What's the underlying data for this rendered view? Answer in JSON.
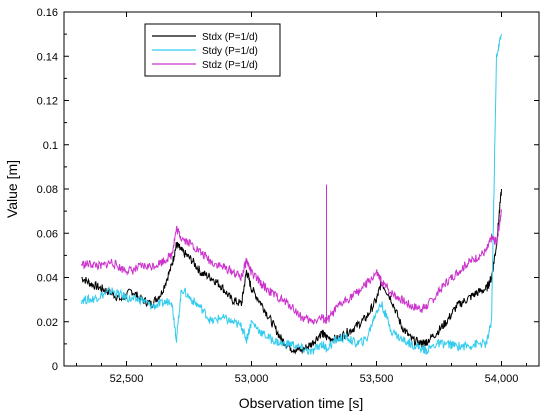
{
  "chart_data": {
    "type": "line",
    "xlabel": "Observation time [s]",
    "ylabel": "Value [m]",
    "xlim": [
      52250,
      54150
    ],
    "ylim": [
      0,
      0.16
    ],
    "x_ticks": [
      52500,
      53000,
      53500,
      54000
    ],
    "x_tick_labels": [
      "52,500",
      "53,000",
      "53,500",
      "54,000"
    ],
    "y_ticks": [
      0,
      0.02,
      0.04,
      0.06,
      0.08,
      0.1,
      0.12,
      0.14,
      0.16
    ],
    "y_tick_labels": [
      "0",
      "0.02",
      "0.04",
      "0.06",
      "0.08",
      "0.1",
      "0.12",
      "0.14",
      "0.16"
    ],
    "grid": false,
    "legend_position": "top-left",
    "series": [
      {
        "name": "Stdx (P=1/d)",
        "color": "#000000",
        "x": [
          52320,
          52360,
          52400,
          52440,
          52480,
          52520,
          52560,
          52600,
          52640,
          52680,
          52700,
          52720,
          52760,
          52800,
          52840,
          52880,
          52920,
          52960,
          52980,
          53000,
          53040,
          53080,
          53120,
          53160,
          53200,
          53240,
          53280,
          53300,
          53340,
          53380,
          53420,
          53460,
          53500,
          53520,
          53560,
          53600,
          53640,
          53680,
          53700,
          53740,
          53780,
          53820,
          53860,
          53900,
          53940,
          53960,
          53980,
          54000
        ],
        "y": [
          0.04,
          0.037,
          0.035,
          0.033,
          0.03,
          0.034,
          0.03,
          0.028,
          0.033,
          0.045,
          0.055,
          0.052,
          0.048,
          0.042,
          0.04,
          0.036,
          0.03,
          0.028,
          0.043,
          0.035,
          0.028,
          0.02,
          0.012,
          0.008,
          0.007,
          0.01,
          0.015,
          0.013,
          0.012,
          0.015,
          0.018,
          0.022,
          0.03,
          0.038,
          0.03,
          0.018,
          0.012,
          0.01,
          0.011,
          0.015,
          0.02,
          0.027,
          0.03,
          0.033,
          0.035,
          0.04,
          0.055,
          0.08
        ]
      },
      {
        "name": "Stdy (P=1/d)",
        "color": "#33ccee",
        "x": [
          52320,
          52360,
          52400,
          52440,
          52480,
          52520,
          52560,
          52600,
          52640,
          52680,
          52700,
          52720,
          52760,
          52800,
          52840,
          52880,
          52920,
          52960,
          52980,
          53000,
          53040,
          53080,
          53120,
          53160,
          53200,
          53240,
          53280,
          53300,
          53340,
          53380,
          53420,
          53460,
          53500,
          53520,
          53560,
          53600,
          53640,
          53680,
          53700,
          53740,
          53780,
          53820,
          53860,
          53900,
          53940,
          53960,
          53980,
          54000
        ],
        "y": [
          0.03,
          0.03,
          0.032,
          0.034,
          0.032,
          0.03,
          0.03,
          0.027,
          0.028,
          0.03,
          0.012,
          0.035,
          0.03,
          0.026,
          0.02,
          0.022,
          0.02,
          0.018,
          0.012,
          0.02,
          0.015,
          0.012,
          0.01,
          0.01,
          0.008,
          0.006,
          0.01,
          0.008,
          0.012,
          0.013,
          0.01,
          0.012,
          0.025,
          0.028,
          0.016,
          0.012,
          0.01,
          0.008,
          0.007,
          0.01,
          0.01,
          0.009,
          0.009,
          0.01,
          0.01,
          0.02,
          0.14,
          0.15
        ]
      },
      {
        "name": "Stdz (P=1/d)",
        "color": "#cc33cc",
        "x": [
          52320,
          52360,
          52400,
          52440,
          52480,
          52520,
          52560,
          52600,
          52640,
          52680,
          52700,
          52720,
          52760,
          52800,
          52840,
          52880,
          52920,
          52960,
          52980,
          53000,
          53040,
          53080,
          53120,
          53160,
          53200,
          53240,
          53280,
          53300,
          53340,
          53380,
          53420,
          53460,
          53500,
          53520,
          53560,
          53600,
          53640,
          53680,
          53700,
          53740,
          53780,
          53820,
          53860,
          53900,
          53940,
          53960,
          53980,
          54000
        ],
        "y": [
          0.046,
          0.046,
          0.045,
          0.047,
          0.044,
          0.043,
          0.045,
          0.045,
          0.047,
          0.05,
          0.062,
          0.058,
          0.055,
          0.051,
          0.047,
          0.045,
          0.043,
          0.04,
          0.048,
          0.042,
          0.037,
          0.033,
          0.03,
          0.027,
          0.022,
          0.02,
          0.022,
          0.02,
          0.026,
          0.03,
          0.033,
          0.037,
          0.042,
          0.038,
          0.033,
          0.03,
          0.027,
          0.026,
          0.027,
          0.032,
          0.038,
          0.042,
          0.046,
          0.049,
          0.052,
          0.058,
          0.056,
          0.07
        ]
      }
    ],
    "spikes": [
      {
        "series": "Stdz (P=1/d)",
        "x": 53300,
        "y_top": 0.082,
        "y_base": 0.02
      }
    ]
  }
}
